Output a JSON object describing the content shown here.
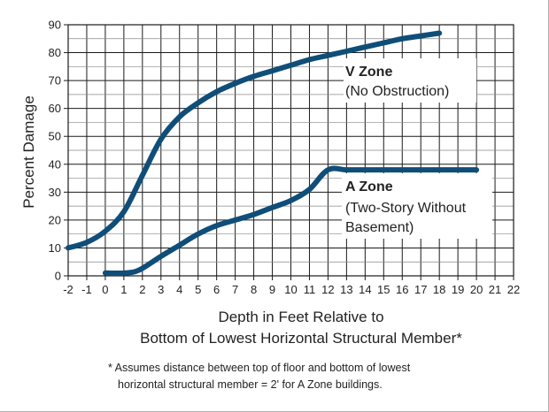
{
  "chart_data": {
    "type": "line",
    "ylabel": "Percent Damage",
    "xlabel_line1": "Depth in Feet Relative to",
    "xlabel_line2": "Bottom of Lowest Horizontal Structural Member*",
    "footnote_line1": "* Assumes distance between top of floor and bottom of lowest",
    "footnote_line2": "horizontal structural member = 2' for A Zone buildings.",
    "xlim": [
      -2,
      22
    ],
    "ylim": [
      0,
      90
    ],
    "grid": true,
    "xticks": [
      "-2",
      "-1",
      "0",
      "1",
      "2",
      "3",
      "4",
      "5",
      "6",
      "7",
      "8",
      "9",
      "10",
      "11",
      "12",
      "13",
      "14",
      "15",
      "16",
      "17",
      "18",
      "19",
      "20",
      "21",
      "22"
    ],
    "yticks": [
      "0",
      "10",
      "20",
      "30",
      "40",
      "50",
      "60",
      "70",
      "80",
      "90"
    ],
    "series": [
      {
        "name": "V Zone",
        "label_line1": "V Zone",
        "label_line2": "(No Obstruction)",
        "color": "#0f4e78",
        "x": [
          -2,
          -1,
          0,
          1,
          2,
          3,
          4,
          5,
          6,
          7,
          8,
          9,
          10,
          11,
          12,
          13,
          14,
          15,
          16,
          17,
          18
        ],
        "y": [
          10,
          12,
          16,
          23,
          36,
          49,
          57,
          62,
          66,
          69,
          71.5,
          73.5,
          75.5,
          77.5,
          79,
          80.5,
          82,
          83.5,
          85,
          86,
          87
        ]
      },
      {
        "name": "A Zone",
        "label_line1": "A Zone",
        "label_line2": "(Two-Story Without",
        "label_line3": "Basement)",
        "color": "#0f4e78",
        "x": [
          0,
          1,
          1.8,
          3,
          4,
          5,
          6,
          7,
          8,
          9,
          10,
          11,
          12,
          13,
          14,
          15,
          16,
          17,
          18,
          19,
          20
        ],
        "y": [
          1,
          1,
          2,
          7,
          11,
          15,
          18,
          20,
          22,
          24.5,
          27,
          31,
          38,
          38,
          38,
          38,
          38,
          38,
          38,
          38,
          38
        ]
      }
    ]
  }
}
